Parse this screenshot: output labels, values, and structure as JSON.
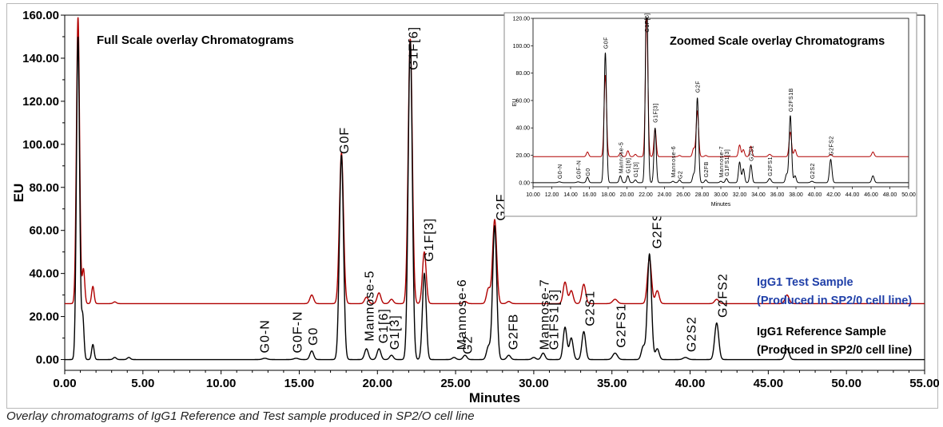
{
  "chart_data": [
    {
      "type": "line",
      "title": "Full Scale overlay Chromatograms",
      "xlabel": "Minutes",
      "ylabel": "EU",
      "xlim": [
        0,
        55
      ],
      "ylim": [
        -5,
        160
      ],
      "x_ticks": [
        "0.00",
        "5.00",
        "10.00",
        "15.00",
        "20.00",
        "25.00",
        "30.00",
        "35.00",
        "40.00",
        "45.00",
        "50.00",
        "55.00"
      ],
      "y_ticks": [
        "0.00",
        "20.00",
        "40.00",
        "60.00",
        "80.00",
        "100.00",
        "120.00",
        "140.00",
        "160.00"
      ],
      "grid": false,
      "series": [
        {
          "name": "IgG1 Reference Sample (Produced in SP2/0 cell line)",
          "legend_line1": "IgG1 Reference Sample",
          "legend_line2": "(Produced in SP2/0 cell line)",
          "color": "#000000",
          "baseline": 0,
          "peaks": [
            {
              "x": 0.85,
              "h": 150,
              "w": 0.1
            },
            {
              "x": 1.15,
              "h": 20,
              "w": 0.08
            },
            {
              "x": 1.8,
              "h": 7,
              "w": 0.08
            },
            {
              "x": 3.2,
              "h": 1,
              "w": 0.1
            },
            {
              "x": 4.1,
              "h": 1,
              "w": 0.1
            },
            {
              "x": 12.8,
              "h": 0.6,
              "w": 0.15
            },
            {
              "x": 14.8,
              "h": 0.6,
              "w": 0.15
            },
            {
              "x": 15.8,
              "h": 4,
              "w": 0.12
            },
            {
              "x": 17.7,
              "h": 95,
              "w": 0.13
            },
            {
              "x": 19.3,
              "h": 5,
              "w": 0.12
            },
            {
              "x": 20.1,
              "h": 5,
              "w": 0.12
            },
            {
              "x": 20.9,
              "h": 2,
              "w": 0.12
            },
            {
              "x": 22.1,
              "h": 148,
              "w": 0.13
            },
            {
              "x": 23.0,
              "h": 40,
              "w": 0.12
            },
            {
              "x": 24.9,
              "h": 1,
              "w": 0.12
            },
            {
              "x": 25.6,
              "h": 2,
              "w": 0.12
            },
            {
              "x": 27.1,
              "h": 6,
              "w": 0.12
            },
            {
              "x": 27.5,
              "h": 62,
              "w": 0.13
            },
            {
              "x": 28.4,
              "h": 2,
              "w": 0.12
            },
            {
              "x": 30.0,
              "h": 1,
              "w": 0.12
            },
            {
              "x": 30.6,
              "h": 3,
              "w": 0.12
            },
            {
              "x": 32.0,
              "h": 15,
              "w": 0.12
            },
            {
              "x": 32.4,
              "h": 10,
              "w": 0.12
            },
            {
              "x": 33.2,
              "h": 13,
              "w": 0.12
            },
            {
              "x": 35.2,
              "h": 3,
              "w": 0.15
            },
            {
              "x": 37.0,
              "h": 6,
              "w": 0.12
            },
            {
              "x": 37.4,
              "h": 49,
              "w": 0.13
            },
            {
              "x": 37.9,
              "h": 5,
              "w": 0.12
            },
            {
              "x": 39.7,
              "h": 1,
              "w": 0.15
            },
            {
              "x": 41.7,
              "h": 17,
              "w": 0.13
            },
            {
              "x": 46.2,
              "h": 5,
              "w": 0.13
            }
          ]
        },
        {
          "name": "IgG1 Test Sample (Produced in SP2/0 cell line)",
          "legend_line1": "IgG1 Test Sample",
          "legend_line2": "(Produced in SP2/0 cell line)",
          "color": "#b00000",
          "baseline": 26,
          "peaks": [
            {
              "x": 0.85,
              "h": 133,
              "w": 0.1
            },
            {
              "x": 1.2,
              "h": 16,
              "w": 0.08
            },
            {
              "x": 1.8,
              "h": 8,
              "w": 0.08
            },
            {
              "x": 3.2,
              "h": 0.8,
              "w": 0.1
            },
            {
              "x": 15.8,
              "h": 4,
              "w": 0.12
            },
            {
              "x": 17.7,
              "h": 70,
              "w": 0.13
            },
            {
              "x": 19.3,
              "h": 3,
              "w": 0.12
            },
            {
              "x": 20.1,
              "h": 5,
              "w": 0.12
            },
            {
              "x": 20.9,
              "h": 2,
              "w": 0.12
            },
            {
              "x": 22.1,
              "h": 123,
              "w": 0.13
            },
            {
              "x": 23.0,
              "h": 24,
              "w": 0.12
            },
            {
              "x": 25.6,
              "h": 1,
              "w": 0.12
            },
            {
              "x": 27.1,
              "h": 7,
              "w": 0.12
            },
            {
              "x": 27.5,
              "h": 39,
              "w": 0.13
            },
            {
              "x": 28.4,
              "h": 1,
              "w": 0.12
            },
            {
              "x": 32.0,
              "h": 10,
              "w": 0.12
            },
            {
              "x": 32.4,
              "h": 6,
              "w": 0.12
            },
            {
              "x": 33.2,
              "h": 9,
              "w": 0.12
            },
            {
              "x": 35.2,
              "h": 2,
              "w": 0.15
            },
            {
              "x": 37.4,
              "h": 21,
              "w": 0.13
            },
            {
              "x": 37.9,
              "h": 6,
              "w": 0.12
            },
            {
              "x": 41.7,
              "h": 2,
              "w": 0.13
            },
            {
              "x": 46.2,
              "h": 4,
              "w": 0.13
            }
          ]
        }
      ],
      "annotations": [
        {
          "text": "G0-N",
          "x": 12.8,
          "y": 1.5
        },
        {
          "text": "G0F-N",
          "x": 14.9,
          "y": 1.5
        },
        {
          "text": "G0",
          "x": 15.9,
          "y": 5
        },
        {
          "text": "G0F",
          "x": 17.9,
          "y": 94
        },
        {
          "text": "Mannose-5",
          "x": 19.5,
          "y": 7
        },
        {
          "text": "G1[6]",
          "x": 20.4,
          "y": 6
        },
        {
          "text": "G1[3]",
          "x": 21.1,
          "y": 3
        },
        {
          "text": "G1F[6]",
          "x": 22.3,
          "y": 133
        },
        {
          "text": "G1F[3]",
          "x": 23.3,
          "y": 44
        },
        {
          "text": "Mannose-6",
          "x": 25.4,
          "y": 3
        },
        {
          "text": "G2",
          "x": 25.8,
          "y": 1
        },
        {
          "text": "G2F",
          "x": 27.9,
          "y": 63
        },
        {
          "text": "G2FB",
          "x": 28.7,
          "y": 3
        },
        {
          "text": "Mannose-7",
          "x": 30.7,
          "y": 3
        },
        {
          "text": "G1FS1[3]",
          "x": 31.3,
          "y": 3
        },
        {
          "text": "G2S1",
          "x": 33.6,
          "y": 14
        },
        {
          "text": "G2FS1",
          "x": 35.6,
          "y": 4
        },
        {
          "text": "G2FS1B",
          "x": 37.9,
          "y": 50
        },
        {
          "text": "G2S2",
          "x": 40.1,
          "y": 2
        },
        {
          "text": "G2FS2",
          "x": 42.1,
          "y": 18
        }
      ]
    },
    {
      "type": "line",
      "title": "Zoomed Scale overlay Chromatograms",
      "xlabel": "Minutes",
      "ylabel": "EU",
      "xlim": [
        10,
        50
      ],
      "ylim": [
        -3,
        120
      ],
      "x_ticks": [
        "10.00",
        "12.00",
        "14.00",
        "16.00",
        "18.00",
        "20.00",
        "22.00",
        "24.00",
        "26.00",
        "28.00",
        "30.00",
        "32.00",
        "34.00",
        "36.00",
        "38.00",
        "40.00",
        "42.00",
        "44.00",
        "46.00",
        "48.00",
        "50.00"
      ],
      "y_ticks": [
        "0.00",
        "20.00",
        "40.00",
        "60.00",
        "80.00",
        "100.00",
        "120.00"
      ],
      "grid": false,
      "annotations": [
        {
          "text": "G0-N",
          "x": 12.8,
          "y": 1
        },
        {
          "text": "G0F-N",
          "x": 14.8,
          "y": 1
        },
        {
          "text": "G0",
          "x": 15.8,
          "y": 3
        },
        {
          "text": "G0F",
          "x": 17.7,
          "y": 96
        },
        {
          "text": "Mannose-5",
          "x": 19.3,
          "y": 5
        },
        {
          "text": "G1[6]",
          "x": 20.1,
          "y": 5
        },
        {
          "text": "G1[3]",
          "x": 20.9,
          "y": 2
        },
        {
          "text": "G1F[6]",
          "x": 22.1,
          "y": 108
        },
        {
          "text": "G1F[3]",
          "x": 23.0,
          "y": 42
        },
        {
          "text": "Mannose-6",
          "x": 24.9,
          "y": 2
        },
        {
          "text": "G2",
          "x": 25.6,
          "y": 1
        },
        {
          "text": "G2F",
          "x": 27.5,
          "y": 64
        },
        {
          "text": "G2FB",
          "x": 28.4,
          "y": 2
        },
        {
          "text": "Mannose-7",
          "x": 30.0,
          "y": 2
        },
        {
          "text": "G1FS1[3]",
          "x": 30.6,
          "y": 3
        },
        {
          "text": "G2S1",
          "x": 33.2,
          "y": 14
        },
        {
          "text": "G2FS1",
          "x": 35.2,
          "y": 3
        },
        {
          "text": "G2FS1B",
          "x": 37.4,
          "y": 50
        },
        {
          "text": "G2S2",
          "x": 39.7,
          "y": 1
        },
        {
          "text": "G2FS2",
          "x": 41.7,
          "y": 18
        }
      ]
    }
  ],
  "caption": "Overlay chromatograms of IgG1 Reference and Test sample produced in SP2/O cell line"
}
